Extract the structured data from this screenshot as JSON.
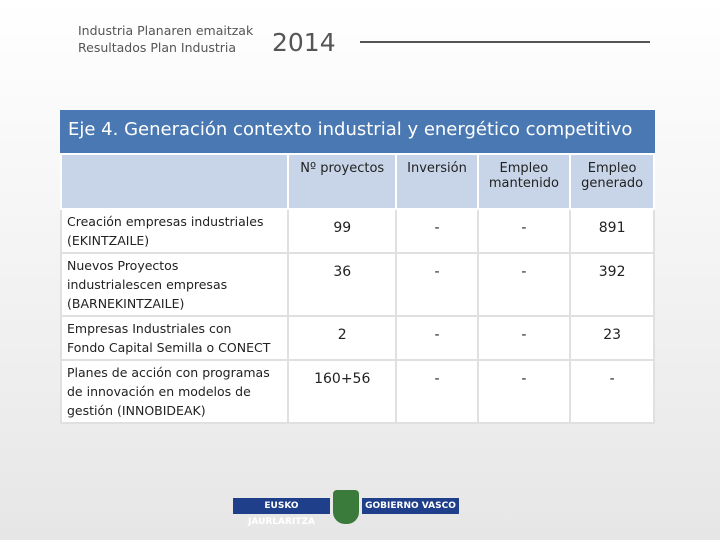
{
  "header": {
    "lines": [
      "Industria Planaren emaitzak",
      "Resultados Plan Industria"
    ],
    "year": "2014"
  },
  "banner": "Eje 4. Generación contexto industrial y energético competitivo",
  "table": {
    "columns": [
      [
        "Nº proyectos"
      ],
      [
        "Inversión"
      ],
      [
        "Empleo",
        "mantenido"
      ],
      [
        "Empleo",
        "generado"
      ]
    ],
    "rows": [
      {
        "label": [
          "Creación empresas industriales",
          "(EKINTZAILE)"
        ],
        "cells": [
          99,
          "-",
          "-",
          891
        ]
      },
      {
        "label": [
          "Nuevos Proyectos",
          "industrialescen empresas",
          "(BARNEKINTZAILE)"
        ],
        "cells": [
          36,
          "-",
          "-",
          392
        ]
      },
      {
        "label": [
          "Empresas Industriales con",
          "Fondo Capital Semilla o CONECT"
        ],
        "cells": [
          2,
          "-",
          "-",
          23
        ]
      },
      {
        "label": [
          "Planes de acción con programas",
          "de innovación en modelos de",
          "gestión (INNOBIDEAK)"
        ],
        "cells": [
          "160+56",
          "-",
          "-",
          "-"
        ]
      }
    ]
  },
  "footer": {
    "left": "EUSKO JAURLARITZA",
    "right": "GOBIERNO VASCO"
  }
}
